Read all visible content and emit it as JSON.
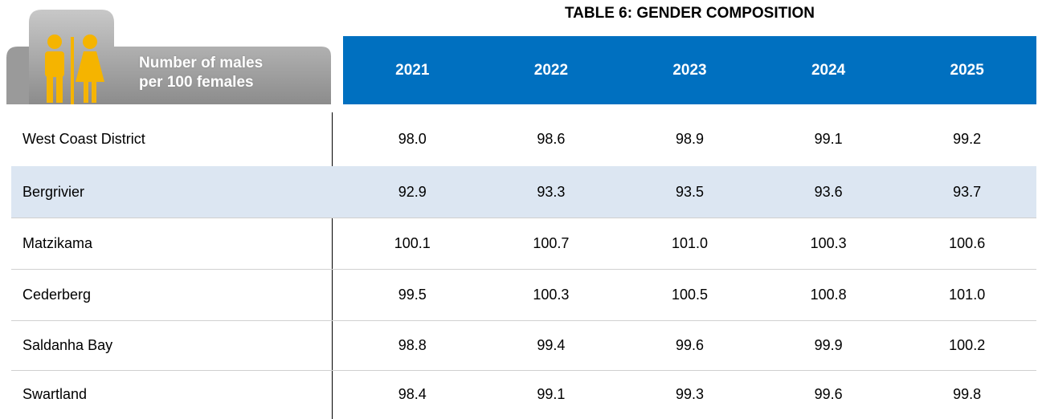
{
  "title": "TABLE 6: GENDER COMPOSITION",
  "table": {
    "corner": [
      "Number of males",
      "per 100 females"
    ],
    "columns": [
      "2021",
      "2022",
      "2023",
      "2024",
      "2025"
    ],
    "rows": [
      [
        "West Coast District",
        "98.0",
        "98.6",
        "98.9",
        "99.1",
        "99.2"
      ],
      [
        "Bergrivier",
        "92.9",
        "93.3",
        "93.5",
        "93.6",
        "93.7"
      ],
      [
        "Matzikama",
        "100.1",
        "100.7",
        "101.0",
        "100.3",
        "100.6"
      ],
      [
        "Cederberg",
        "99.5",
        "100.3",
        "100.5",
        "100.8",
        "101.0"
      ],
      [
        "Saldanha Bay",
        "98.8",
        "99.4",
        "99.6",
        "99.9",
        "100.2"
      ],
      [
        "Swartland",
        "98.4",
        "99.1",
        "99.3",
        "99.6",
        "99.8"
      ]
    ]
  }
}
